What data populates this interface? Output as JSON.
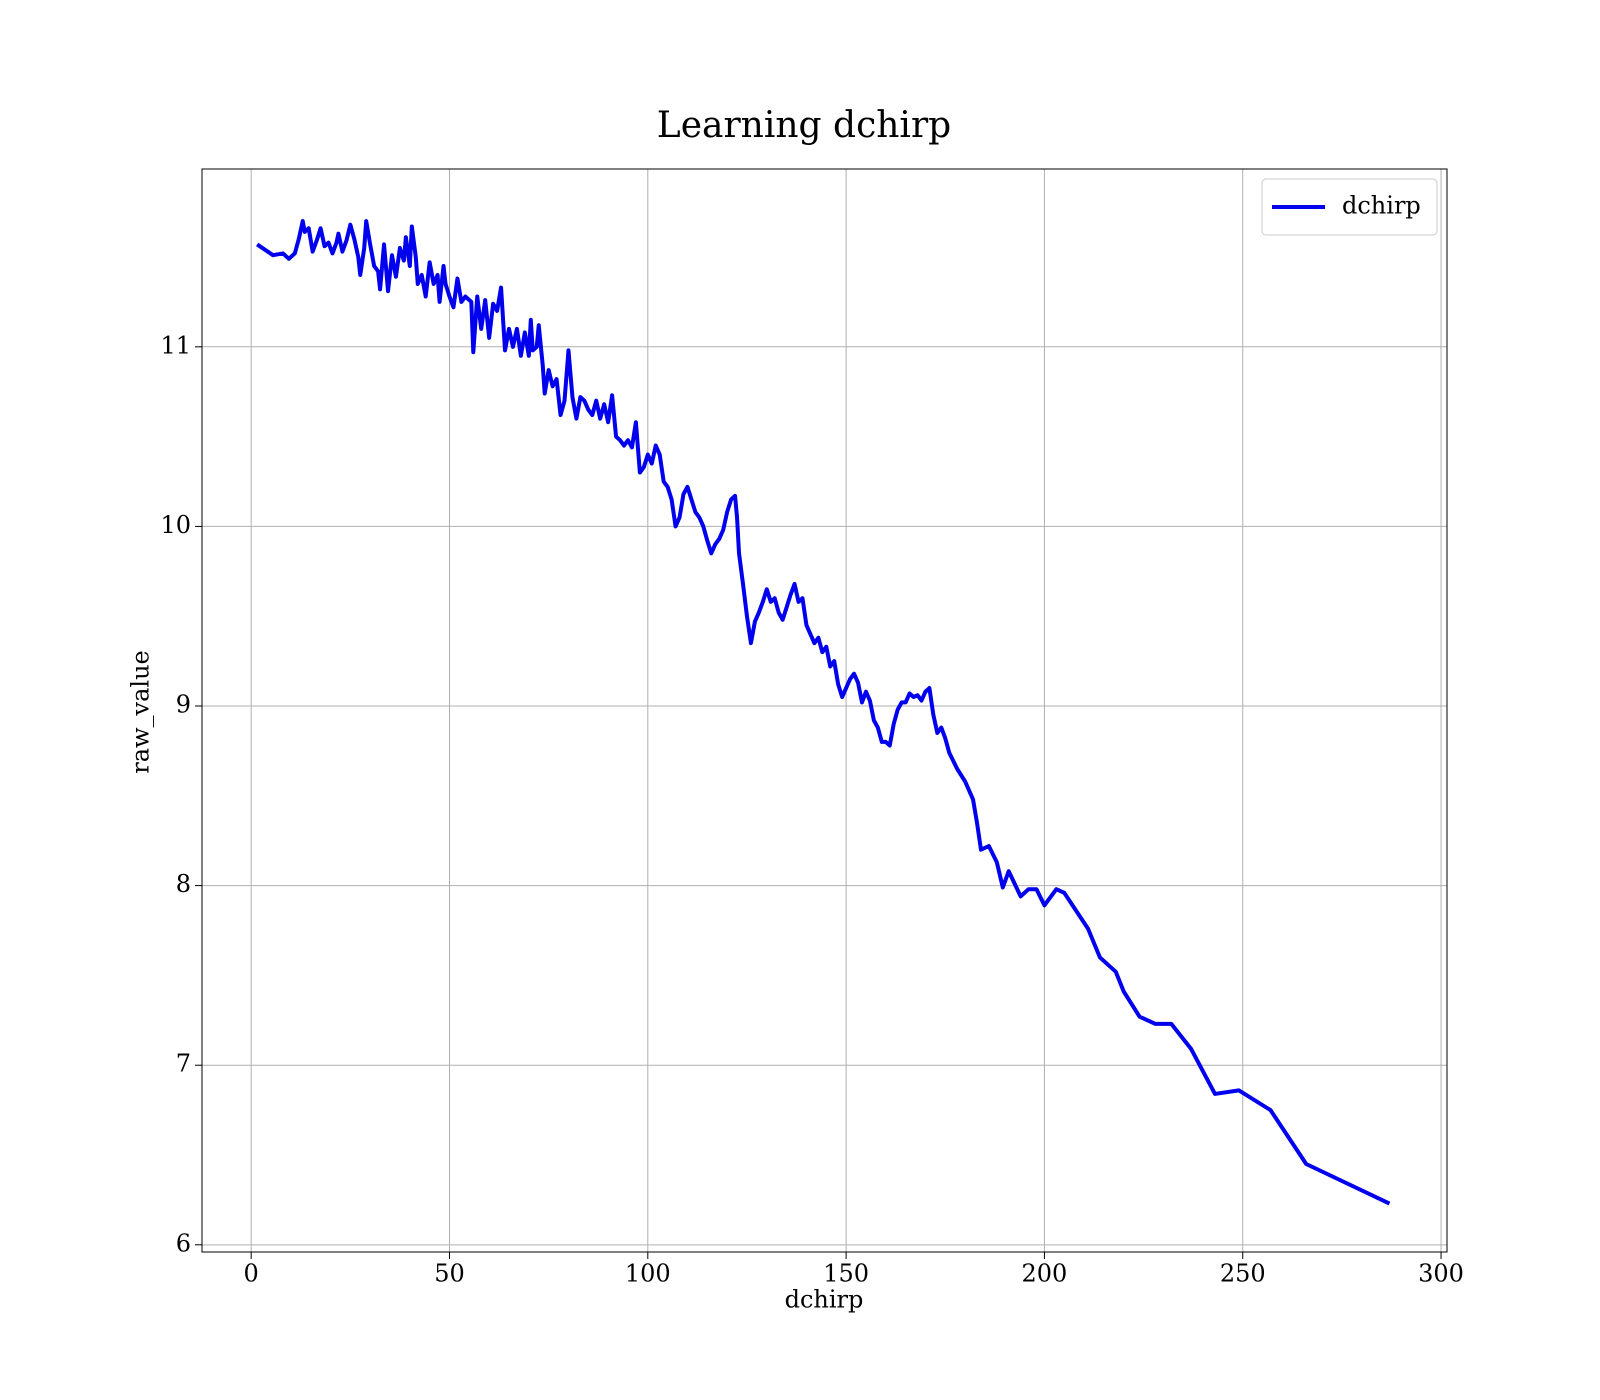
{
  "chart_data": {
    "type": "line",
    "title": "Learning dchirp",
    "xlabel": "dchirp",
    "ylabel": "raw_value",
    "x": [
      1.5,
      5.5,
      8,
      9.5,
      11,
      12,
      13,
      13.5,
      14.5,
      15.5,
      16.5,
      17.5,
      18.5,
      19.5,
      20.5,
      21.5,
      22,
      23,
      24,
      25,
      26,
      27,
      27.5,
      28.5,
      29,
      30,
      31,
      32,
      32.5,
      33.5,
      34.5,
      35.5,
      36.5,
      37.5,
      38.5,
      39,
      40,
      40.5,
      41.5,
      42,
      43,
      44,
      45,
      46,
      47,
      47.5,
      48.5,
      49,
      50,
      51,
      52,
      53,
      54,
      55.5,
      56,
      57,
      58,
      59,
      60,
      61,
      62,
      63,
      64,
      65,
      66,
      67,
      68,
      69,
      70,
      70.5,
      71,
      72,
      72.5,
      73.5,
      74,
      75,
      76,
      77,
      78,
      79,
      80,
      81,
      82,
      83,
      84,
      85,
      86,
      87,
      88,
      89,
      90,
      91,
      92,
      93,
      94,
      95,
      96,
      97,
      98,
      99,
      100,
      101,
      102,
      103,
      104,
      105,
      106,
      107,
      108,
      109,
      110,
      111,
      112,
      113,
      114,
      115,
      116,
      117,
      118,
      119,
      120,
      121,
      122,
      122.5,
      123,
      124,
      125,
      126,
      127,
      128,
      129,
      130,
      131,
      132,
      133,
      134,
      135,
      136,
      137,
      138,
      139,
      140,
      141,
      142,
      143,
      144,
      145,
      146,
      147,
      148,
      149,
      150,
      151,
      152,
      153,
      154,
      155,
      156,
      157,
      158,
      159,
      160,
      161,
      162,
      163,
      164,
      165,
      166,
      167,
      168,
      169,
      170,
      171,
      172,
      173,
      174,
      175,
      176,
      178,
      180,
      182,
      183,
      184,
      186,
      188,
      189.5,
      191,
      194,
      196,
      198,
      200,
      203,
      205,
      211,
      214,
      218,
      220,
      224,
      228,
      232,
      237,
      243,
      249,
      257,
      266,
      287
    ],
    "series": [
      {
        "name": "dchirp",
        "color": "#0000ee",
        "values": [
          11.57,
          11.51,
          11.52,
          11.49,
          11.52,
          11.6,
          11.7,
          11.64,
          11.66,
          11.53,
          11.59,
          11.66,
          11.56,
          11.58,
          11.52,
          11.58,
          11.63,
          11.53,
          11.59,
          11.68,
          11.6,
          11.5,
          11.4,
          11.55,
          11.7,
          11.57,
          11.45,
          11.42,
          11.32,
          11.57,
          11.31,
          11.51,
          11.39,
          11.55,
          11.48,
          11.61,
          11.45,
          11.67,
          11.5,
          11.35,
          11.4,
          11.28,
          11.47,
          11.35,
          11.4,
          11.25,
          11.45,
          11.35,
          11.28,
          11.22,
          11.38,
          11.25,
          11.28,
          11.25,
          10.97,
          11.28,
          11.1,
          11.26,
          11.05,
          11.24,
          11.2,
          11.33,
          10.98,
          11.1,
          11.0,
          11.1,
          10.95,
          11.08,
          10.95,
          11.15,
          10.98,
          11.0,
          11.12,
          10.9,
          10.74,
          10.87,
          10.78,
          10.82,
          10.62,
          10.7,
          10.98,
          10.72,
          10.6,
          10.72,
          10.7,
          10.65,
          10.62,
          10.7,
          10.6,
          10.68,
          10.58,
          10.73,
          10.5,
          10.48,
          10.45,
          10.48,
          10.44,
          10.58,
          10.3,
          10.33,
          10.4,
          10.35,
          10.45,
          10.4,
          10.25,
          10.22,
          10.15,
          10.0,
          10.05,
          10.18,
          10.22,
          10.15,
          10.08,
          10.05,
          10.0,
          9.92,
          9.85,
          9.9,
          9.93,
          9.98,
          10.08,
          10.15,
          10.17,
          10.05,
          9.85,
          9.68,
          9.5,
          9.35,
          9.47,
          9.52,
          9.58,
          9.65,
          9.58,
          9.6,
          9.52,
          9.48,
          9.55,
          9.62,
          9.68,
          9.58,
          9.6,
          9.45,
          9.4,
          9.35,
          9.38,
          9.3,
          9.33,
          9.22,
          9.25,
          9.12,
          9.05,
          9.1,
          9.15,
          9.18,
          9.13,
          9.02,
          9.08,
          9.03,
          8.92,
          8.88,
          8.8,
          8.8,
          8.78,
          8.9,
          8.98,
          9.02,
          9.02,
          9.07,
          9.05,
          9.06,
          9.03,
          9.08,
          9.1,
          8.95,
          8.85,
          8.88,
          8.82,
          8.74,
          8.65,
          8.58,
          8.48,
          8.35,
          8.2,
          8.22,
          8.13,
          7.99,
          8.08,
          7.94,
          7.98,
          7.98,
          7.89,
          7.98,
          7.96,
          7.76,
          7.6,
          7.52,
          7.41,
          7.27,
          7.23,
          7.23,
          7.09,
          6.84,
          6.86,
          6.75,
          6.45,
          6.23
        ]
      }
    ],
    "xlim": [
      -12.4,
      301.5
    ],
    "ylim": [
      5.96,
      11.99
    ],
    "xticks": [
      0,
      50,
      100,
      150,
      200,
      250,
      300
    ],
    "yticks": [
      6,
      7,
      8,
      9,
      10,
      11
    ],
    "grid": true,
    "legend": "upper right"
  }
}
